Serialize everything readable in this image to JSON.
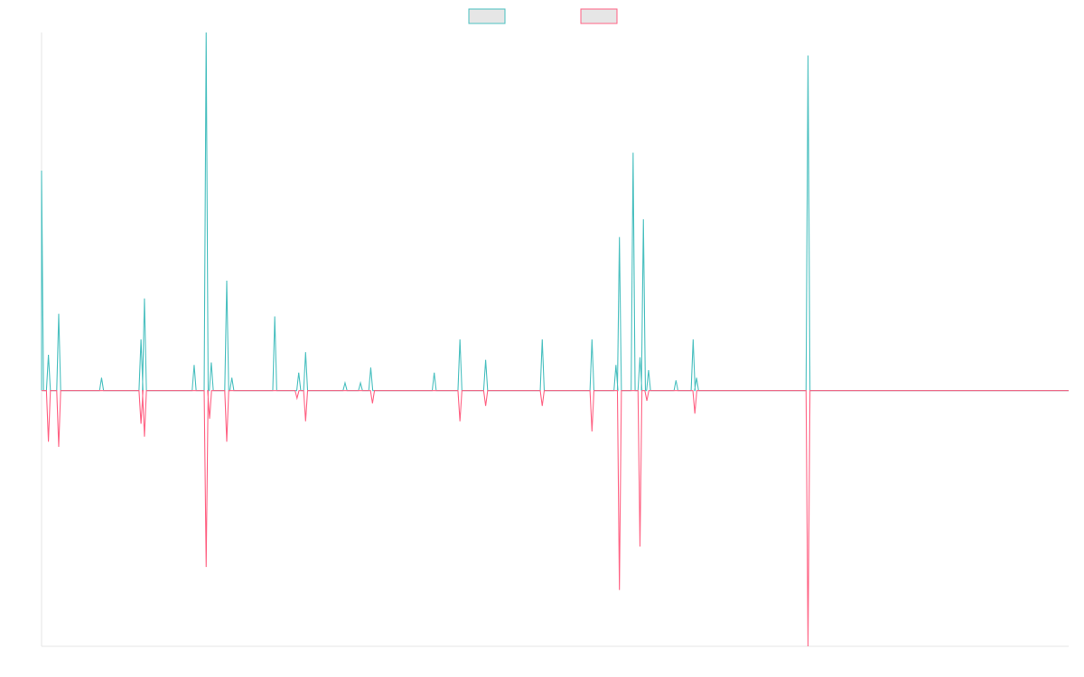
{
  "chart_data": {
    "type": "line",
    "x_count": 600,
    "legend": {
      "position": "top-center",
      "swatches": [
        {
          "series_index": 0
        },
        {
          "series_index": 1
        }
      ]
    },
    "grid": false,
    "axes": {
      "x_ticks": false,
      "y_ticks": false
    },
    "ylim": [
      -50,
      70
    ],
    "series": [
      {
        "color": "#4bc0c0",
        "fill": "#e6e6e6",
        "sign": 1,
        "spikes": [
          {
            "x": 0,
            "value": 43
          },
          {
            "x": 4,
            "value": 7
          },
          {
            "x": 10,
            "value": 15
          },
          {
            "x": 35,
            "value": 2.5
          },
          {
            "x": 58,
            "value": 10
          },
          {
            "x": 60,
            "value": 18
          },
          {
            "x": 89,
            "value": 5
          },
          {
            "x": 96,
            "value": 70
          },
          {
            "x": 99,
            "value": 5.5
          },
          {
            "x": 108,
            "value": 21.5
          },
          {
            "x": 111,
            "value": 2.5
          },
          {
            "x": 136,
            "value": 14.5
          },
          {
            "x": 150,
            "value": 3.5
          },
          {
            "x": 154,
            "value": 7.5
          },
          {
            "x": 177,
            "value": 1.5
          },
          {
            "x": 186,
            "value": 1.5
          },
          {
            "x": 192,
            "value": 4.5
          },
          {
            "x": 229,
            "value": 3.5
          },
          {
            "x": 244,
            "value": 10
          },
          {
            "x": 259,
            "value": 6
          },
          {
            "x": 292,
            "value": 10
          },
          {
            "x": 321,
            "value": 10
          },
          {
            "x": 335,
            "value": 5
          },
          {
            "x": 337,
            "value": 30
          },
          {
            "x": 345,
            "value": 46.5
          },
          {
            "x": 349,
            "value": 6.5
          },
          {
            "x": 351,
            "value": 33.5
          },
          {
            "x": 354,
            "value": 4
          },
          {
            "x": 370,
            "value": 2
          },
          {
            "x": 380,
            "value": 10
          },
          {
            "x": 382,
            "value": 2.5
          },
          {
            "x": 447,
            "value": 65.5
          }
        ]
      },
      {
        "color": "#ff6384",
        "fill": "#e6e6e6",
        "sign": -1,
        "spikes": [
          {
            "x": 4,
            "value": 10
          },
          {
            "x": 10,
            "value": 11
          },
          {
            "x": 58,
            "value": 6.5
          },
          {
            "x": 60,
            "value": 9
          },
          {
            "x": 96,
            "value": 34.5
          },
          {
            "x": 98,
            "value": 5.5
          },
          {
            "x": 108,
            "value": 10
          },
          {
            "x": 149,
            "value": 1.5
          },
          {
            "x": 154,
            "value": 6
          },
          {
            "x": 193,
            "value": 2.5
          },
          {
            "x": 244,
            "value": 6
          },
          {
            "x": 259,
            "value": 3
          },
          {
            "x": 292,
            "value": 3
          },
          {
            "x": 321,
            "value": 8
          },
          {
            "x": 337,
            "value": 39
          },
          {
            "x": 349,
            "value": 30.5
          },
          {
            "x": 353,
            "value": 2
          },
          {
            "x": 381,
            "value": 4.5
          },
          {
            "x": 447,
            "value": 50
          }
        ]
      }
    ]
  }
}
